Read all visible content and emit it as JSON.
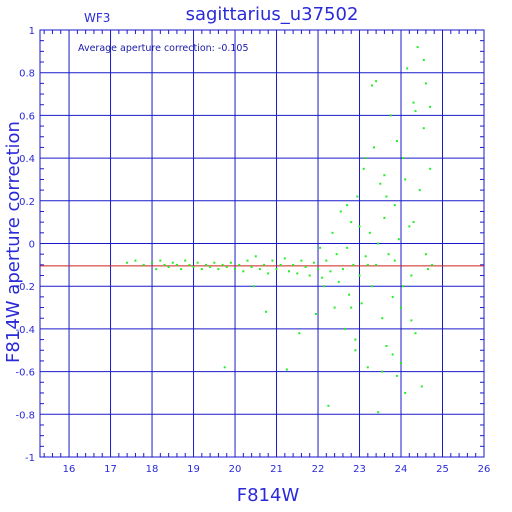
{
  "chart_data": {
    "type": "scatter",
    "title": "sagittarius_u37502",
    "subtitle": "WF3",
    "annotation": "Average aperture correction: -0.105",
    "xlabel": "F814W",
    "ylabel": "F814W aperture correction",
    "xlim": [
      15.3,
      26
    ],
    "ylim": [
      -1,
      1
    ],
    "x_ticks": [
      "16",
      "17",
      "18",
      "19",
      "20",
      "21",
      "22",
      "23",
      "24",
      "25",
      "26"
    ],
    "y_ticks": [
      "-1",
      "-0.8",
      "-0.6",
      "-0.4",
      "-0.2",
      "0",
      "0.2",
      "0.4",
      "0.6",
      "0.8",
      "1"
    ],
    "grid": true,
    "reference_line": {
      "y": -0.105,
      "color": "#cc2020"
    },
    "colors": {
      "points": "#22ee22",
      "axes": "#1a1acc",
      "text": "#2a2ad8"
    },
    "series": [
      {
        "points": [
          [
            17.4,
            -0.09
          ],
          [
            17.6,
            -0.08
          ],
          [
            17.8,
            -0.1
          ],
          [
            18.0,
            -0.09
          ],
          [
            18.1,
            -0.12
          ],
          [
            18.2,
            -0.08
          ],
          [
            18.3,
            -0.1
          ],
          [
            18.4,
            -0.11
          ],
          [
            18.5,
            -0.09
          ],
          [
            18.6,
            -0.1
          ],
          [
            18.7,
            -0.12
          ],
          [
            18.8,
            -0.08
          ],
          [
            18.9,
            -0.1
          ],
          [
            19.0,
            -0.11
          ],
          [
            19.1,
            -0.09
          ],
          [
            19.2,
            -0.12
          ],
          [
            19.3,
            -0.1
          ],
          [
            19.4,
            -0.11
          ],
          [
            19.5,
            -0.09
          ],
          [
            19.6,
            -0.12
          ],
          [
            19.7,
            -0.1
          ],
          [
            19.75,
            -0.58
          ],
          [
            19.8,
            -0.11
          ],
          [
            19.9,
            -0.09
          ],
          [
            20.0,
            -0.12
          ],
          [
            20.1,
            -0.1
          ],
          [
            20.2,
            -0.13
          ],
          [
            20.3,
            -0.08
          ],
          [
            20.4,
            -0.11
          ],
          [
            20.45,
            -0.2
          ],
          [
            20.5,
            -0.06
          ],
          [
            20.6,
            -0.12
          ],
          [
            20.7,
            -0.1
          ],
          [
            20.75,
            -0.32
          ],
          [
            20.8,
            -0.14
          ],
          [
            20.9,
            -0.08
          ],
          [
            21.0,
            -0.12
          ],
          [
            21.1,
            -0.1
          ],
          [
            21.2,
            -0.07
          ],
          [
            21.25,
            -0.59
          ],
          [
            21.3,
            -0.13
          ],
          [
            21.4,
            -0.1
          ],
          [
            21.5,
            -0.14
          ],
          [
            21.55,
            -0.42
          ],
          [
            21.6,
            -0.08
          ],
          [
            21.7,
            -0.11
          ],
          [
            21.8,
            -0.15
          ],
          [
            21.9,
            -0.09
          ],
          [
            21.95,
            -0.33
          ],
          [
            22.0,
            -0.12
          ],
          [
            22.05,
            -0.02
          ],
          [
            22.1,
            -0.16
          ],
          [
            22.15,
            -0.2
          ],
          [
            22.2,
            -0.08
          ],
          [
            22.25,
            -0.76
          ],
          [
            22.3,
            -0.13
          ],
          [
            22.35,
            0.05
          ],
          [
            22.4,
            -0.3
          ],
          [
            22.45,
            -0.05
          ],
          [
            22.5,
            -0.18
          ],
          [
            22.55,
            0.15
          ],
          [
            22.6,
            -0.12
          ],
          [
            22.65,
            -0.4
          ],
          [
            22.7,
            -0.02
          ],
          [
            22.75,
            -0.24
          ],
          [
            22.8,
            0.1
          ],
          [
            22.85,
            -0.1
          ],
          [
            22.9,
            -0.5
          ],
          [
            22.95,
            0.22
          ],
          [
            23.0,
            -0.15
          ],
          [
            23.05,
            -0.28
          ],
          [
            23.1,
            0.35
          ],
          [
            23.15,
            -0.06
          ],
          [
            23.2,
            -0.58
          ],
          [
            23.25,
            0.05
          ],
          [
            23.3,
            -0.2
          ],
          [
            23.35,
            0.45
          ],
          [
            23.4,
            -0.1
          ],
          [
            23.45,
            -0.79
          ],
          [
            23.5,
            0.28
          ],
          [
            23.55,
            -0.35
          ],
          [
            23.6,
            0.12
          ],
          [
            23.65,
            -0.48
          ],
          [
            23.7,
            -0.05
          ],
          [
            23.75,
            0.6
          ],
          [
            23.8,
            -0.25
          ],
          [
            23.85,
            0.18
          ],
          [
            23.9,
            -0.62
          ],
          [
            23.95,
            0.02
          ],
          [
            24.0,
            -0.3
          ],
          [
            24.05,
            0.4
          ],
          [
            24.1,
            -0.7
          ],
          [
            24.15,
            0.82
          ],
          [
            24.2,
            0.08
          ],
          [
            24.25,
            -0.15
          ],
          [
            24.3,
            0.66
          ],
          [
            24.35,
            -0.42
          ],
          [
            24.4,
            0.92
          ],
          [
            24.45,
            0.25
          ],
          [
            24.5,
            -0.67
          ],
          [
            24.55,
            0.54
          ],
          [
            24.6,
            0.75
          ],
          [
            24.65,
            -0.12
          ],
          [
            24.7,
            0.35
          ],
          [
            24.75,
            -0.1
          ],
          [
            23.3,
            0.74
          ],
          [
            23.4,
            0.76
          ],
          [
            24.35,
            0.62
          ],
          [
            24.55,
            0.86
          ],
          [
            24.7,
            0.64
          ],
          [
            22.9,
            -0.45
          ],
          [
            23.55,
            -0.6
          ],
          [
            23.8,
            -0.52
          ],
          [
            24.0,
            -0.56
          ],
          [
            24.25,
            -0.36
          ],
          [
            23.15,
            0.4
          ],
          [
            23.6,
            0.32
          ],
          [
            23.9,
            0.48
          ],
          [
            24.1,
            0.3
          ],
          [
            22.7,
            0.18
          ],
          [
            22.8,
            -0.3
          ],
          [
            23.0,
            0.08
          ],
          [
            23.2,
            -0.1
          ],
          [
            23.45,
            0.0
          ],
          [
            23.65,
            0.22
          ],
          [
            23.85,
            -0.08
          ],
          [
            24.05,
            -0.2
          ],
          [
            24.3,
            0.1
          ],
          [
            24.6,
            -0.05
          ]
        ]
      }
    ]
  }
}
